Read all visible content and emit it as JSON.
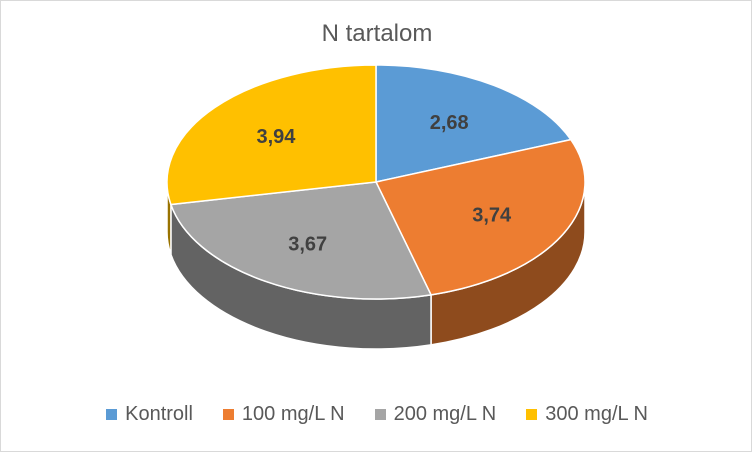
{
  "chart_data": {
    "type": "pie",
    "title": "N tartalom",
    "categories": [
      "Kontroll",
      "100 mg/L N",
      "200 mg/L N",
      "300 mg/L N"
    ],
    "values": [
      2.68,
      3.74,
      3.67,
      3.94
    ],
    "data_labels": [
      "2,68",
      "3,74",
      "3,67",
      "3,94"
    ],
    "colors": [
      "#5b9bd5",
      "#ed7d31",
      "#a5a5a5",
      "#ffc000"
    ],
    "legend_position": "bottom",
    "style": "3d"
  }
}
